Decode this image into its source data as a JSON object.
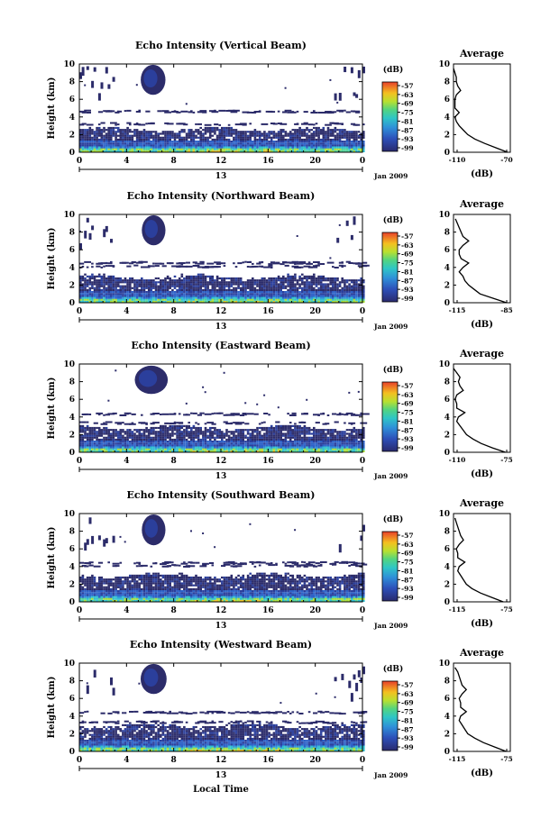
{
  "figure": {
    "xlabel": "Local Time",
    "day_label": "13",
    "month_label": "Jan 2009",
    "ylabel": "Height (km)",
    "colorbar_unit": "(dB)",
    "colorbar_ticks": [
      "-57",
      "-63",
      "-69",
      "-75",
      "-81",
      "-87",
      "-93",
      "-99"
    ],
    "avg_title": "Average",
    "avg_xlabel": "(dB)"
  },
  "chart_data": [
    {
      "type": "heatmap",
      "title": "Echo Intensity (Vertical Beam)",
      "xlabel": "",
      "ylabel": "Height (km)",
      "x_ticks": [
        "0",
        "4",
        "8",
        "12",
        "16",
        "20",
        "0"
      ],
      "y_ticks": [
        "0",
        "2",
        "4",
        "6",
        "8",
        "10"
      ],
      "xlim": [
        0,
        24
      ],
      "ylim": [
        0,
        10
      ],
      "color_range_dB": [
        -99,
        -57
      ],
      "features": {
        "boundary_layer_top_km": 2.5,
        "layer_km": [
          4.7,
          3.3
        ],
        "cloud": {
          "start_h": 5.2,
          "end_h": 7.3,
          "base_km": 6.5,
          "top_km": 9.9
        },
        "scattered_top": true
      },
      "average": {
        "title": "Average",
        "xlabel": "(dB)",
        "x_ticks": [
          "-110",
          "-70"
        ],
        "xlim": [
          -110,
          -70
        ],
        "y_ticks": [
          "0",
          "2",
          "4",
          "6",
          "8",
          "10"
        ],
        "heights_km": [
          0,
          0.5,
          1,
          1.5,
          2,
          2.5,
          3,
          3.5,
          4,
          4.5,
          5,
          5.5,
          6,
          6.5,
          7,
          7.5,
          8,
          8.5,
          9,
          9.5
        ],
        "values_dB": [
          -72,
          -80,
          -88,
          -95,
          -100,
          -103,
          -106,
          -108,
          -109,
          -106,
          -109,
          -109,
          -109,
          -108,
          -105,
          -107,
          -108,
          -108,
          -109,
          -110
        ]
      }
    },
    {
      "type": "heatmap",
      "title": "Echo Intensity (Northward Beam)",
      "xlabel": "",
      "ylabel": "Height (km)",
      "x_ticks": [
        "0",
        "4",
        "8",
        "12",
        "16",
        "20",
        "0"
      ],
      "y_ticks": [
        "0",
        "2",
        "4",
        "6",
        "8",
        "10"
      ],
      "xlim": [
        0,
        24
      ],
      "ylim": [
        0,
        10
      ],
      "color_range_dB": [
        -99,
        -57
      ],
      "features": {
        "boundary_layer_top_km": 2.8,
        "layer_km": [
          4.6,
          4.2
        ],
        "cloud": {
          "start_h": 5.3,
          "end_h": 7.3,
          "base_km": 6.5,
          "top_km": 9.9
        },
        "scattered_top": true
      },
      "average": {
        "title": "Average",
        "xlabel": "(dB)",
        "x_ticks": [
          "-115",
          "-85"
        ],
        "xlim": [
          -115,
          -85
        ],
        "y_ticks": [
          "0",
          "2",
          "4",
          "6",
          "8",
          "10"
        ],
        "heights_km": [
          0,
          0.5,
          1,
          1.5,
          2,
          2.5,
          3,
          3.5,
          4,
          4.5,
          5,
          5.5,
          6,
          6.5,
          7,
          7.5,
          8,
          8.5,
          9,
          9.5
        ],
        "values_dB": [
          -87,
          -94,
          -101,
          -104,
          -107,
          -109,
          -110,
          -112,
          -110,
          -107,
          -111,
          -112,
          -112,
          -110,
          -107,
          -110,
          -111,
          -112,
          -113,
          -114
        ]
      }
    },
    {
      "type": "heatmap",
      "title": "Echo Intensity (Eastward Beam)",
      "xlabel": "",
      "ylabel": "Height (km)",
      "x_ticks": [
        "0",
        "4",
        "8",
        "12",
        "16",
        "20",
        "0"
      ],
      "y_ticks": [
        "0",
        "2",
        "4",
        "6",
        "8",
        "10"
      ],
      "xlim": [
        0,
        24
      ],
      "ylim": [
        0,
        10
      ],
      "color_range_dB": [
        -99,
        -57
      ],
      "features": {
        "boundary_layer_top_km": 2.7,
        "layer_km": [
          4.4,
          3.4
        ],
        "cloud": {
          "start_h": 4.7,
          "end_h": 7.5,
          "base_km": 6.6,
          "top_km": 9.8
        },
        "scattered_top": false
      },
      "average": {
        "title": "Average",
        "xlabel": "(dB)",
        "x_ticks": [
          "-110",
          "-75"
        ],
        "xlim": [
          -110,
          -75
        ],
        "y_ticks": [
          "0",
          "2",
          "4",
          "6",
          "8",
          "10"
        ],
        "heights_km": [
          0,
          0.5,
          1,
          1.5,
          2,
          2.5,
          3,
          3.5,
          4,
          4.5,
          5,
          5.5,
          6,
          6.5,
          7,
          7.5,
          8,
          8.5,
          9,
          9.5
        ],
        "values_dB": [
          -78,
          -86,
          -93,
          -98,
          -102,
          -104,
          -106,
          -108,
          -107,
          -103,
          -108,
          -108,
          -109,
          -108,
          -104,
          -106,
          -107,
          -106,
          -108,
          -110
        ]
      }
    },
    {
      "type": "heatmap",
      "title": "Echo Intensity (Southward Beam)",
      "xlabel": "",
      "ylabel": "Height (km)",
      "x_ticks": [
        "0",
        "4",
        "8",
        "12",
        "16",
        "20",
        "0"
      ],
      "y_ticks": [
        "0",
        "2",
        "4",
        "6",
        "8",
        "10"
      ],
      "xlim": [
        0,
        24
      ],
      "ylim": [
        0,
        10
      ],
      "color_range_dB": [
        -99,
        -57
      ],
      "features": {
        "boundary_layer_top_km": 2.9,
        "layer_km": [
          4.5,
          4.2
        ],
        "cloud": {
          "start_h": 5.3,
          "end_h": 7.3,
          "base_km": 6.4,
          "top_km": 9.9
        },
        "scattered_top": true
      },
      "average": {
        "title": "Average",
        "xlabel": "(dB)",
        "x_ticks": [
          "-115",
          "-75"
        ],
        "xlim": [
          -115,
          -75
        ],
        "y_ticks": [
          "0",
          "2",
          "4",
          "6",
          "8",
          "10"
        ],
        "heights_km": [
          0,
          0.5,
          1,
          1.5,
          2,
          2.5,
          3,
          3.5,
          4,
          4.5,
          5,
          5.5,
          6,
          6.5,
          7,
          7.5,
          8,
          8.5,
          9,
          9.5
        ],
        "values_dB": [
          -80,
          -88,
          -96,
          -102,
          -106,
          -108,
          -110,
          -112,
          -111,
          -107,
          -112,
          -112,
          -113,
          -111,
          -108,
          -110,
          -111,
          -112,
          -113,
          -114
        ]
      }
    },
    {
      "type": "heatmap",
      "title": "Echo Intensity (Westward Beam)",
      "xlabel": "Local Time",
      "ylabel": "Height (km)",
      "x_ticks": [
        "0",
        "4",
        "8",
        "12",
        "16",
        "20",
        "0"
      ],
      "y_ticks": [
        "0",
        "2",
        "4",
        "6",
        "8",
        "10"
      ],
      "xlim": [
        0,
        24
      ],
      "ylim": [
        0,
        10
      ],
      "color_range_dB": [
        -99,
        -57
      ],
      "features": {
        "boundary_layer_top_km": 2.8,
        "layer_km": [
          4.5,
          3.4
        ],
        "cloud": {
          "start_h": 5.2,
          "end_h": 7.4,
          "base_km": 6.5,
          "top_km": 9.9
        },
        "scattered_top": true
      },
      "average": {
        "title": "Average",
        "xlabel": "(dB)",
        "x_ticks": [
          "-115",
          "-75"
        ],
        "xlim": [
          -115,
          -75
        ],
        "y_ticks": [
          "0",
          "2",
          "4",
          "6",
          "8",
          "10"
        ],
        "heights_km": [
          0,
          0.5,
          1,
          1.5,
          2,
          2.5,
          3,
          3.5,
          4,
          4.5,
          5,
          5.5,
          6,
          6.5,
          7,
          7.5,
          8,
          8.5,
          9,
          9.5
        ],
        "values_dB": [
          -78,
          -86,
          -94,
          -100,
          -105,
          -107,
          -109,
          -111,
          -110,
          -106,
          -110,
          -110,
          -111,
          -109,
          -106,
          -109,
          -110,
          -111,
          -112,
          -114
        ]
      }
    }
  ]
}
